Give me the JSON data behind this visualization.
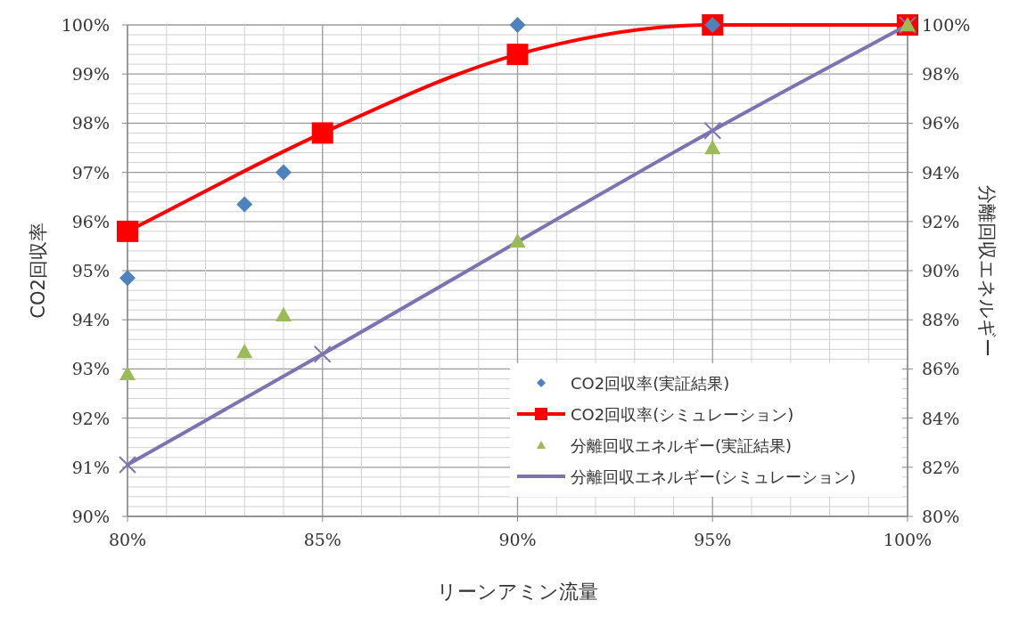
{
  "chart_data": {
    "type": "line",
    "xlabel": "リーンアミン流量",
    "ylabel": "CO2回収率",
    "y2label": "分離回収エネルギー",
    "xlim": [
      80,
      100
    ],
    "xticks": [
      {
        "value": 80,
        "label": "80%"
      },
      {
        "value": 85,
        "label": "85%"
      },
      {
        "value": 90,
        "label": "90%"
      },
      {
        "value": 95,
        "label": "95%"
      },
      {
        "value": 100,
        "label": "100%"
      }
    ],
    "ylim": [
      90,
      100
    ],
    "yticks": [
      {
        "value": 90,
        "label": "90%"
      },
      {
        "value": 91,
        "label": "91%"
      },
      {
        "value": 92,
        "label": "92%"
      },
      {
        "value": 93,
        "label": "93%"
      },
      {
        "value": 94,
        "label": "94%"
      },
      {
        "value": 95,
        "label": "95%"
      },
      {
        "value": 96,
        "label": "96%"
      },
      {
        "value": 97,
        "label": "97%"
      },
      {
        "value": 98,
        "label": "98%"
      },
      {
        "value": 99,
        "label": "99%"
      },
      {
        "value": 100,
        "label": "100%"
      }
    ],
    "y2lim": [
      80,
      100
    ],
    "y2ticks": [
      {
        "value": 80,
        "label": "80%"
      },
      {
        "value": 82,
        "label": "82%"
      },
      {
        "value": 84,
        "label": "84%"
      },
      {
        "value": 86,
        "label": "86%"
      },
      {
        "value": 88,
        "label": "88%"
      },
      {
        "value": 90,
        "label": "90%"
      },
      {
        "value": 92,
        "label": "92%"
      },
      {
        "value": 94,
        "label": "94%"
      },
      {
        "value": 96,
        "label": "96%"
      },
      {
        "value": 98,
        "label": "98%"
      },
      {
        "value": 100,
        "label": "100%"
      }
    ],
    "grid": true,
    "legend": "bottom right",
    "series": [
      {
        "name": "CO2回収率(実証結果)",
        "type": "scatter",
        "marker": "diamond",
        "color": "#4f81bd",
        "x": [
          80,
          83,
          84,
          90,
          95
        ],
        "values": [
          94.85,
          96.35,
          97.0,
          100,
          100
        ]
      },
      {
        "name": "CO2回収率(シミュレーション)",
        "type": "line",
        "marker": "square",
        "line_style": "solid",
        "color": "#ff0000",
        "x": [
          80,
          85,
          90,
          95,
          100
        ],
        "values": [
          95.8,
          97.8,
          99.4,
          100,
          100
        ]
      },
      {
        "name": "分離回収エネルギー(実証結果)",
        "type": "scatter",
        "marker": "triangle",
        "color": "#9bbb59",
        "axis": "y2",
        "x": [
          80,
          83,
          84,
          90,
          95,
          100
        ],
        "values": [
          85.8,
          86.7,
          88.2,
          91.2,
          95.0,
          100
        ]
      },
      {
        "name": "分離回収エネルギー(シミュレーション)",
        "type": "line",
        "marker": "cross",
        "line_style": "solid",
        "color": "#7b74b0",
        "axis": "y2",
        "x": [
          80,
          85,
          95,
          100
        ],
        "values": [
          82.1,
          86.6,
          95.7,
          100
        ]
      }
    ]
  }
}
